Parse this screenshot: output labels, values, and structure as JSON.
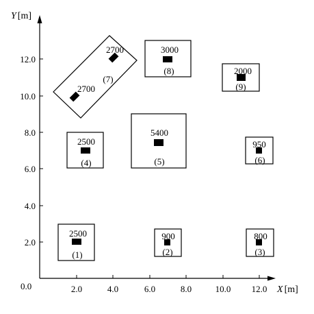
{
  "axes": {
    "y_label_var": "Y",
    "y_label_unit": "[m]",
    "x_label_var": "X",
    "x_label_unit": "[m]",
    "origin_label": "0.0",
    "x_ticks": [
      "2.0",
      "4.0",
      "6.0",
      "8.0",
      "10.0",
      "12.0"
    ],
    "y_ticks": [
      "2.0",
      "4.0",
      "6.0",
      "8.0",
      "10.0",
      "12.0"
    ]
  },
  "zones": [
    {
      "id": "(1)",
      "points": [
        {
          "value": "2500",
          "x": 2.0,
          "y": 2.0
        }
      ]
    },
    {
      "id": "(2)",
      "points": [
        {
          "value": "900",
          "x": 7.0,
          "y": 2.0
        }
      ]
    },
    {
      "id": "(3)",
      "points": [
        {
          "value": "800",
          "x": 12.0,
          "y": 2.0
        }
      ]
    },
    {
      "id": "(4)",
      "points": [
        {
          "value": "2500",
          "x": 2.5,
          "y": 7.0
        }
      ]
    },
    {
      "id": "(5)",
      "points": [
        {
          "value": "5400",
          "x": 6.5,
          "y": 7.5
        }
      ]
    },
    {
      "id": "(6)",
      "points": [
        {
          "value": "950",
          "x": 12.0,
          "y": 7.0
        }
      ]
    },
    {
      "id": "(7)",
      "points": [
        {
          "value": "2700",
          "x": 4.0,
          "y": 12.0
        },
        {
          "value": "2700",
          "x": 1.8,
          "y": 10.0
        }
      ]
    },
    {
      "id": "(8)",
      "points": [
        {
          "value": "3000",
          "x": 7.0,
          "y": 12.0
        }
      ]
    },
    {
      "id": "(9)",
      "points": [
        {
          "value": "2000",
          "x": 11.0,
          "y": 11.0
        }
      ]
    }
  ]
}
